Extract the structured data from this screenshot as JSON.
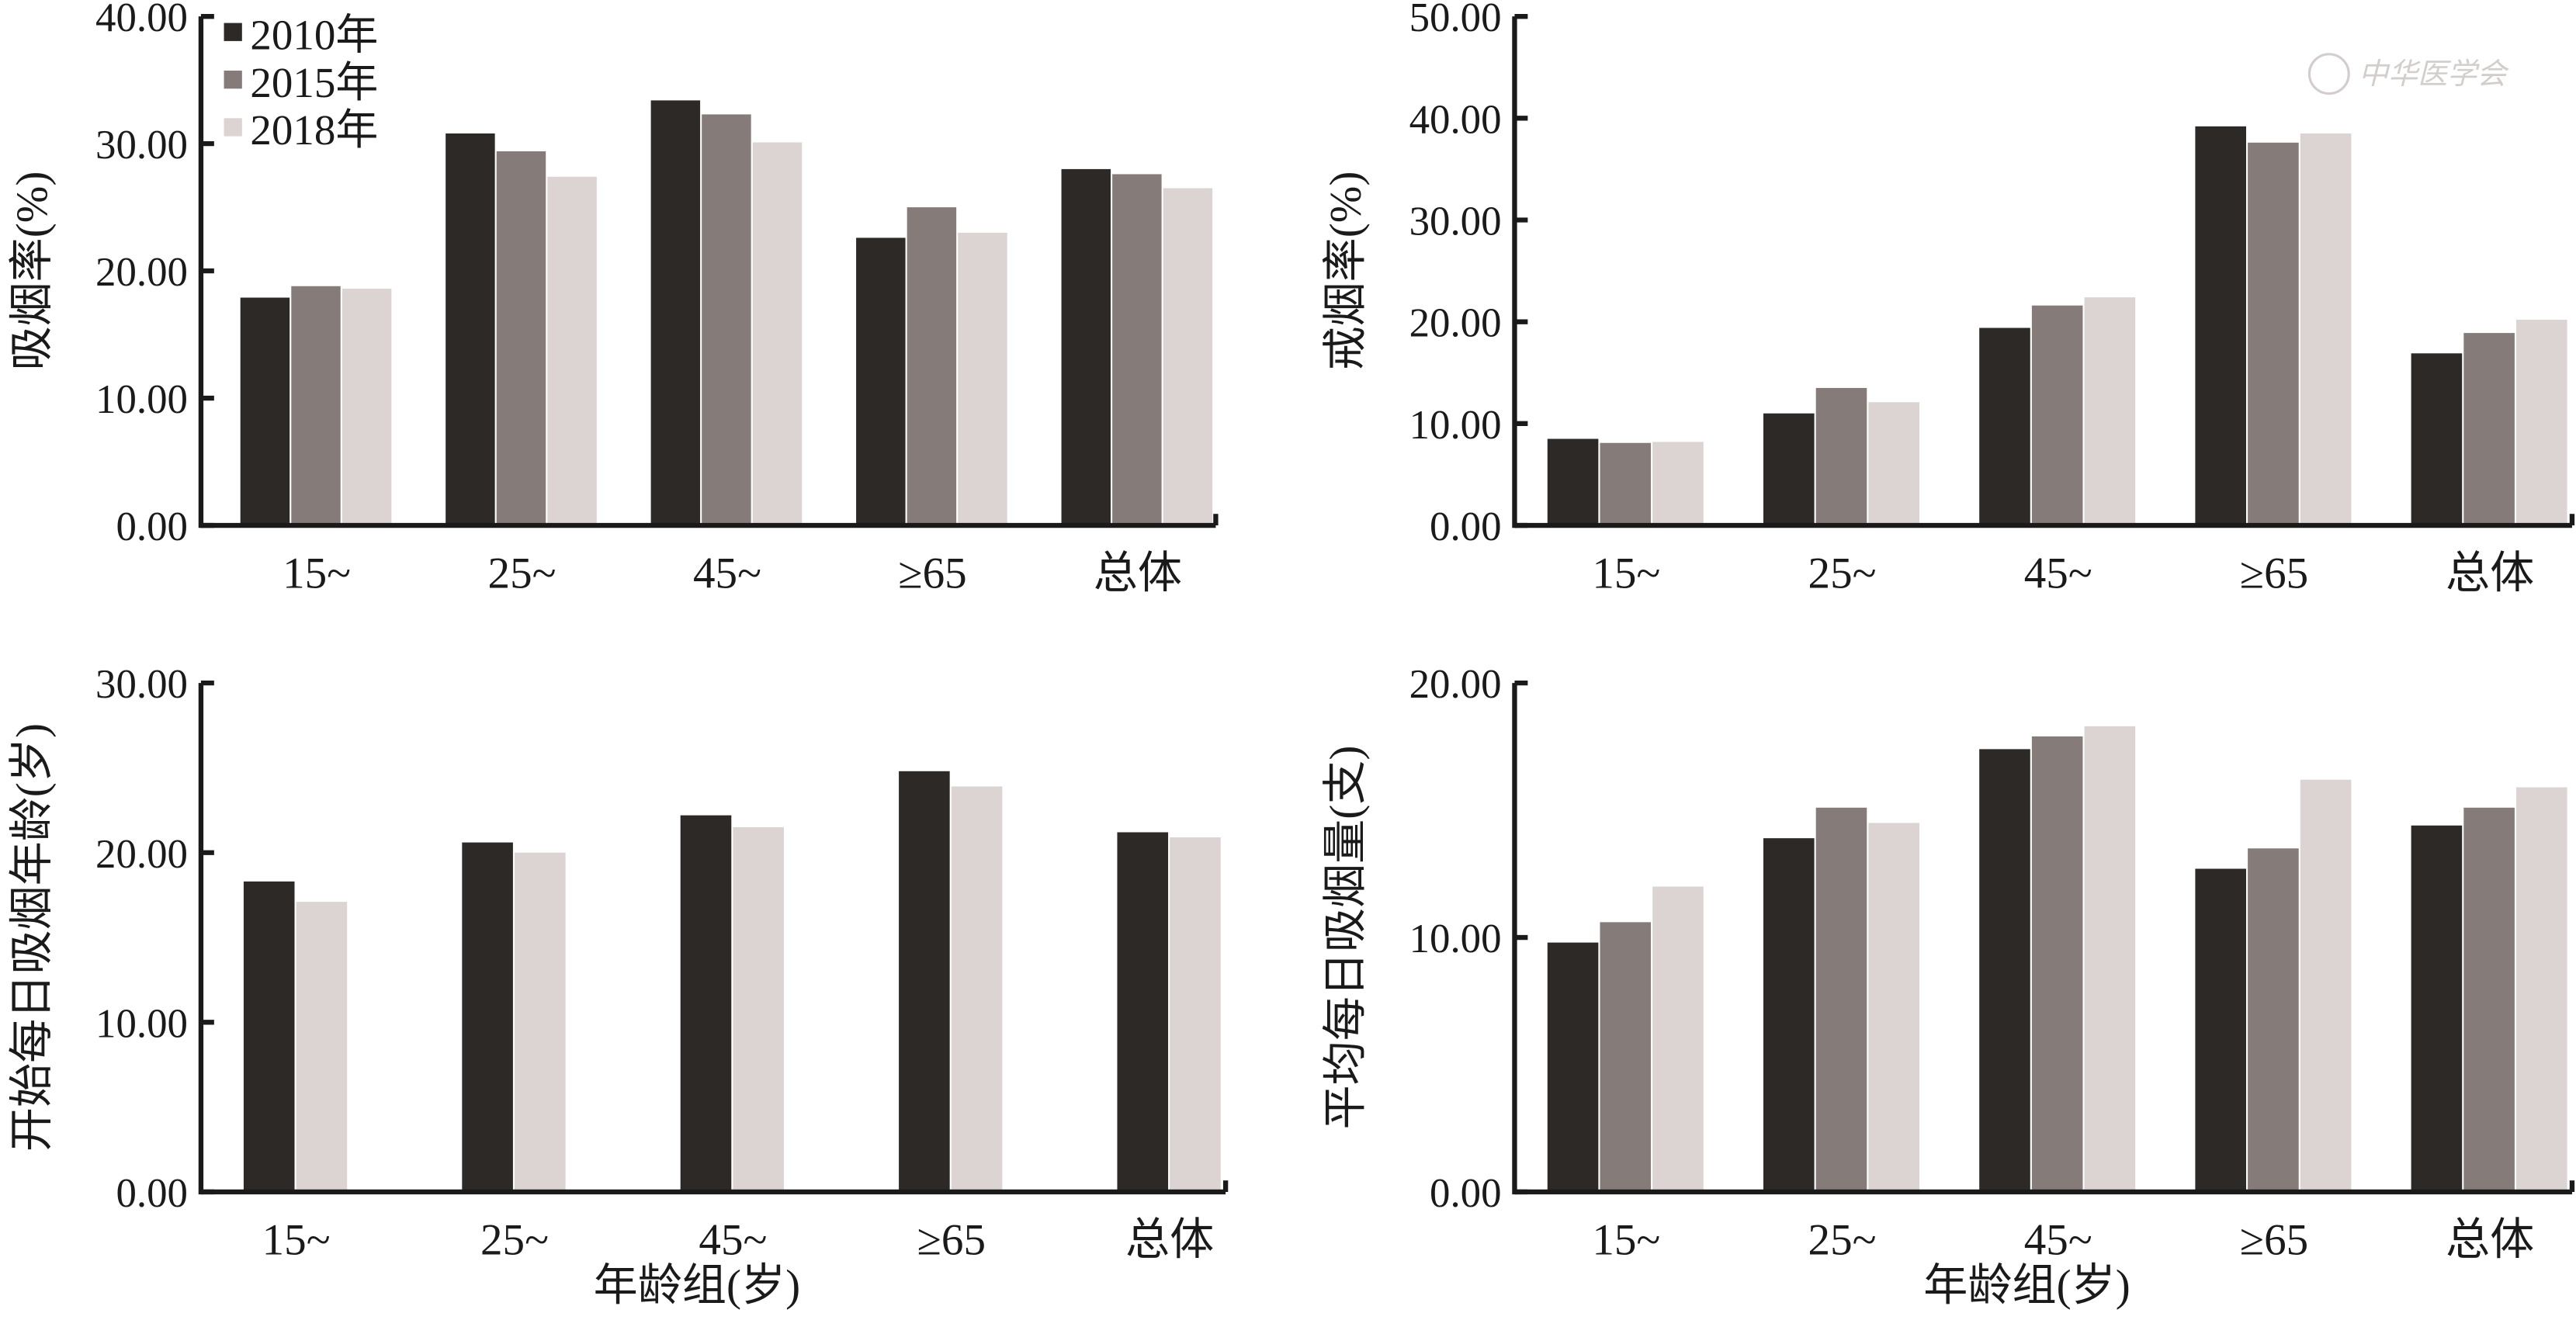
{
  "colors": {
    "2010": "#2d2926",
    "2015": "#857c79",
    "2018": "#dbd4d2",
    "axis": "#1a1a1a"
  },
  "legend": [
    "2010年",
    "2015年",
    "2018年"
  ],
  "watermark": "中华医学会",
  "chart_data": [
    {
      "type": "bar",
      "ylabel": "吸烟率(%)",
      "xlabel": "",
      "categories": [
        "15~",
        "25~",
        "45~",
        "≥65",
        "总体"
      ],
      "ylim": [
        0,
        40
      ],
      "yticks": [
        "0.00",
        "10.00",
        "20.00",
        "30.00",
        "40.00"
      ],
      "legend_position": "top-left",
      "series": [
        {
          "name": "2010年",
          "values": [
            17.9,
            30.8,
            33.4,
            22.6,
            28.0
          ]
        },
        {
          "name": "2015年",
          "values": [
            18.8,
            29.4,
            32.3,
            25.0,
            27.6
          ]
        },
        {
          "name": "2018年",
          "values": [
            18.6,
            27.4,
            30.1,
            23.0,
            26.5
          ]
        }
      ]
    },
    {
      "type": "bar",
      "ylabel": "戒烟率(%)",
      "xlabel": "",
      "categories": [
        "15~",
        "25~",
        "45~",
        "≥65",
        "总体"
      ],
      "ylim": [
        0,
        50
      ],
      "yticks": [
        "0.00",
        "10.00",
        "20.00",
        "30.00",
        "40.00",
        "50.00"
      ],
      "series": [
        {
          "name": "2010年",
          "values": [
            8.5,
            11.0,
            19.4,
            39.2,
            16.9
          ]
        },
        {
          "name": "2015年",
          "values": [
            8.1,
            13.5,
            21.6,
            37.6,
            18.9
          ]
        },
        {
          "name": "2018年",
          "values": [
            8.2,
            12.1,
            22.4,
            38.5,
            20.2
          ]
        }
      ]
    },
    {
      "type": "bar",
      "ylabel": "开始每日吸烟年龄(岁)",
      "xlabel": "年龄组(岁)",
      "categories": [
        "15~",
        "25~",
        "45~",
        "≥65",
        "总体"
      ],
      "ylim": [
        0,
        30
      ],
      "yticks": [
        "0.00",
        "10.00",
        "20.00",
        "30.00"
      ],
      "series": [
        {
          "name": "2010年",
          "values": [
            18.3,
            20.6,
            22.2,
            24.8,
            21.2
          ]
        },
        {
          "name": "2018年",
          "values": [
            17.1,
            20.0,
            21.5,
            23.9,
            20.9
          ]
        }
      ]
    },
    {
      "type": "bar",
      "ylabel": "平均每日吸烟量(支)",
      "xlabel": "年龄组(岁)",
      "categories": [
        "15~",
        "25~",
        "45~",
        "≥65",
        "总体"
      ],
      "ylim": [
        0,
        20
      ],
      "yticks": [
        "0.00",
        "10.00",
        "20.00"
      ],
      "series": [
        {
          "name": "2010年",
          "values": [
            9.8,
            13.9,
            17.4,
            12.7,
            14.4
          ]
        },
        {
          "name": "2015年",
          "values": [
            10.6,
            15.1,
            17.9,
            13.5,
            15.1
          ]
        },
        {
          "name": "2018年",
          "values": [
            12.0,
            14.5,
            18.3,
            16.2,
            15.9
          ]
        }
      ]
    }
  ]
}
